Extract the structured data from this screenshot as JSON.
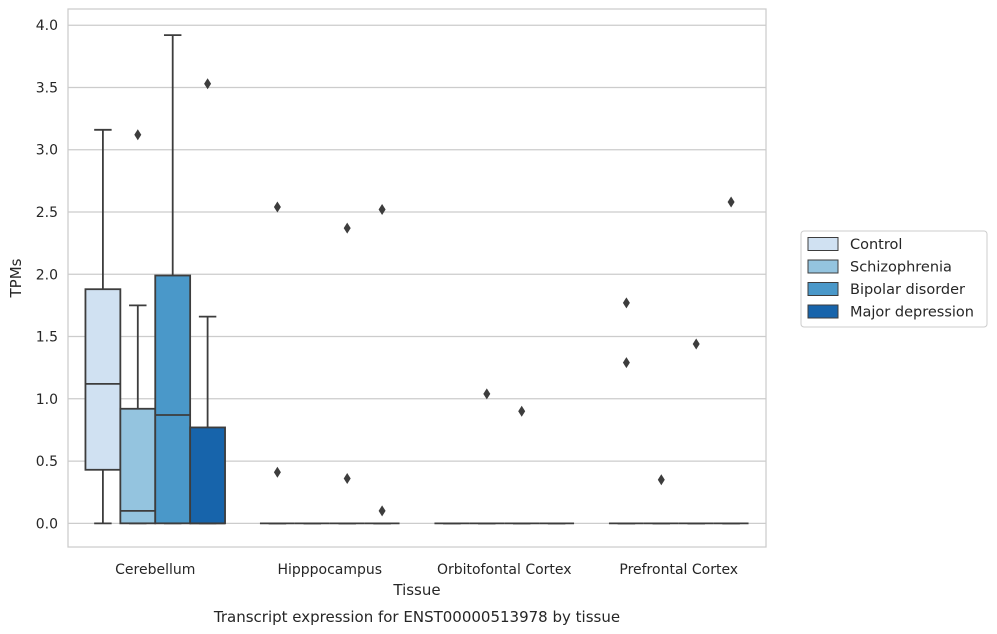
{
  "caption": "Transcript expression for ENST00000513978 by tissue",
  "chart_data": {
    "type": "box",
    "xlabel": "Tissue",
    "ylabel": "TPMs",
    "ylim": [
      -0.19,
      4.13
    ],
    "yticks": [
      0.0,
      0.5,
      1.0,
      1.5,
      2.0,
      2.5,
      3.0,
      3.5,
      4.0
    ],
    "ytick_labels": [
      "0.0",
      "0.5",
      "1.0",
      "1.5",
      "2.0",
      "2.5",
      "3.0",
      "3.5",
      "4.0"
    ],
    "grid": "horizontal",
    "legend_position": "right",
    "categories": [
      "Cerebellum",
      "Hipppocampus",
      "Orbitofontal Cortex",
      "Prefrontal Cortex"
    ],
    "series": [
      {
        "name": "Control",
        "color": "#d0e1f2",
        "boxes": [
          {
            "whislo": 0.0,
            "q1": 0.43,
            "med": 1.12,
            "q3": 1.88,
            "whishi": 3.16,
            "fliers": []
          },
          {
            "whislo": 0.0,
            "q1": 0.0,
            "med": 0.0,
            "q3": 0.0,
            "whishi": 0.0,
            "fliers": [
              2.54,
              0.41
            ]
          },
          {
            "whislo": 0.0,
            "q1": 0.0,
            "med": 0.0,
            "q3": 0.0,
            "whishi": 0.0,
            "fliers": []
          },
          {
            "whislo": 0.0,
            "q1": 0.0,
            "med": 0.0,
            "q3": 0.0,
            "whishi": 0.0,
            "fliers": [
              1.77,
              1.29
            ]
          }
        ]
      },
      {
        "name": "Schizophrenia",
        "color": "#94c4df",
        "boxes": [
          {
            "whislo": 0.0,
            "q1": 0.0,
            "med": 0.1,
            "q3": 0.92,
            "whishi": 1.75,
            "fliers": [
              3.12
            ]
          },
          {
            "whislo": 0.0,
            "q1": 0.0,
            "med": 0.0,
            "q3": 0.0,
            "whishi": 0.0,
            "fliers": []
          },
          {
            "whislo": 0.0,
            "q1": 0.0,
            "med": 0.0,
            "q3": 0.0,
            "whishi": 0.0,
            "fliers": [
              1.04
            ]
          },
          {
            "whislo": 0.0,
            "q1": 0.0,
            "med": 0.0,
            "q3": 0.0,
            "whishi": 0.0,
            "fliers": [
              0.35
            ]
          }
        ]
      },
      {
        "name": "Bipolar disorder",
        "color": "#4a98c9",
        "boxes": [
          {
            "whislo": 0.0,
            "q1": 0.0,
            "med": 0.87,
            "q3": 1.99,
            "whishi": 3.92,
            "fliers": []
          },
          {
            "whislo": 0.0,
            "q1": 0.0,
            "med": 0.0,
            "q3": 0.0,
            "whishi": 0.0,
            "fliers": [
              2.37,
              0.36
            ]
          },
          {
            "whislo": 0.0,
            "q1": 0.0,
            "med": 0.0,
            "q3": 0.0,
            "whishi": 0.0,
            "fliers": [
              0.9
            ]
          },
          {
            "whislo": 0.0,
            "q1": 0.0,
            "med": 0.0,
            "q3": 0.0,
            "whishi": 0.0,
            "fliers": [
              1.44
            ]
          }
        ]
      },
      {
        "name": "Major depression",
        "color": "#1764ab",
        "boxes": [
          {
            "whislo": 0.0,
            "q1": 0.0,
            "med": 0.0,
            "q3": 0.77,
            "whishi": 1.66,
            "fliers": [
              3.53
            ]
          },
          {
            "whislo": 0.0,
            "q1": 0.0,
            "med": 0.0,
            "q3": 0.0,
            "whishi": 0.0,
            "fliers": [
              2.52,
              0.1
            ]
          },
          {
            "whislo": 0.0,
            "q1": 0.0,
            "med": 0.0,
            "q3": 0.0,
            "whishi": 0.0,
            "fliers": []
          },
          {
            "whislo": 0.0,
            "q1": 0.0,
            "med": 0.0,
            "q3": 0.0,
            "whishi": 0.0,
            "fliers": [
              2.58
            ]
          }
        ]
      }
    ]
  }
}
